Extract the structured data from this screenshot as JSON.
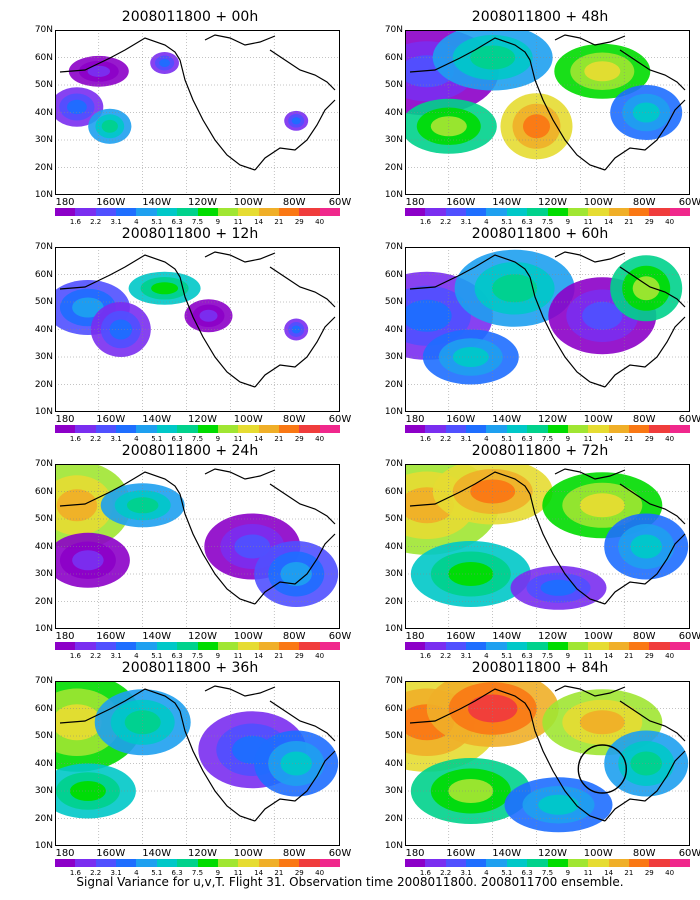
{
  "footer": "Signal Variance for u,v,T. Flight 31. Observation time 2008011800. 2008011700 ensemble.",
  "panels": [
    {
      "date": "2008011800",
      "plus": "+",
      "lead": "00h"
    },
    {
      "date": "2008011800",
      "plus": "+",
      "lead": "48h"
    },
    {
      "date": "2008011800",
      "plus": "+",
      "lead": "12h"
    },
    {
      "date": "2008011800",
      "plus": "+",
      "lead": "60h"
    },
    {
      "date": "2008011800",
      "plus": "+",
      "lead": "24h"
    },
    {
      "date": "2008011800",
      "plus": "+",
      "lead": "72h"
    },
    {
      "date": "2008011800",
      "plus": "+",
      "lead": "36h"
    },
    {
      "date": "2008011800",
      "plus": "+",
      "lead": "84h"
    }
  ],
  "lat_labels": [
    "70N",
    "60N",
    "50N",
    "40N",
    "30N",
    "20N",
    "10N"
  ],
  "lon_labels": [
    "180",
    "160W",
    "140W",
    "120W",
    "100W",
    "80W",
    "60W"
  ],
  "colorbar": {
    "labels": [
      "1.6",
      "2.2",
      "3.1",
      "4",
      "5.1",
      "6.3",
      "7.5",
      "9",
      "11",
      "14",
      "21",
      "29",
      "40"
    ],
    "colors": [
      "#8c00c8",
      "#7a2ef0",
      "#5050ff",
      "#1e6eff",
      "#1ea0f0",
      "#00c8c8",
      "#00d28c",
      "#00dc00",
      "#a0e632",
      "#e6dc32",
      "#f0af28",
      "#fa7814",
      "#f03c3c",
      "#f0288c"
    ]
  }
}
